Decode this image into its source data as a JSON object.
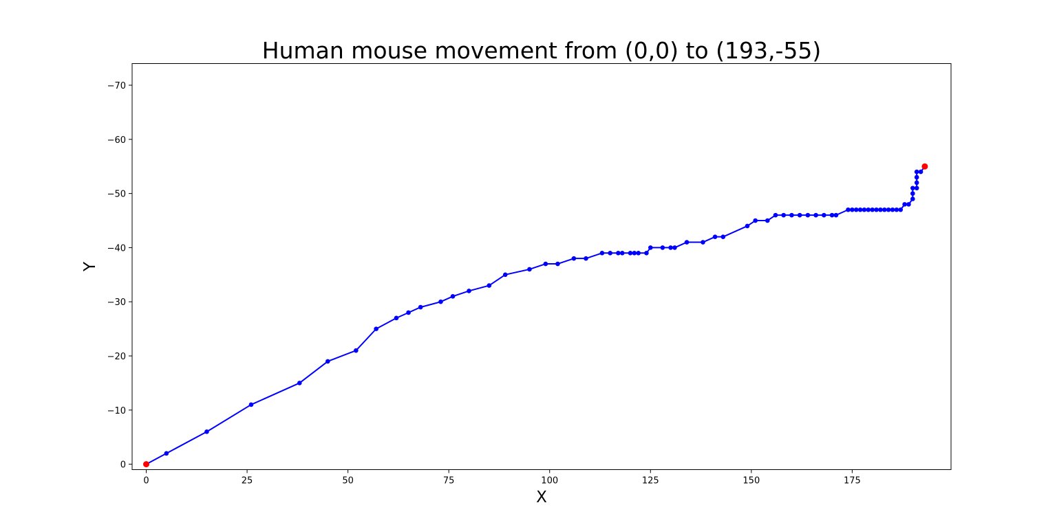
{
  "chart_data": {
    "type": "line",
    "title": "Human mouse movement from (0,0) to (193,-55)",
    "xlabel": "X",
    "ylabel": "Y",
    "xlim": [
      -3.5,
      199.5
    ],
    "ylim": [
      1,
      -74
    ],
    "y_inverted": true,
    "grid": false,
    "legend": "none",
    "x_ticks": [
      0,
      25,
      50,
      75,
      100,
      125,
      150,
      175
    ],
    "y_ticks": [
      0,
      -10,
      -20,
      -30,
      -40,
      -50,
      -60,
      -70
    ],
    "x_tick_labels": [
      "0",
      "25",
      "50",
      "75",
      "100",
      "125",
      "150",
      "175"
    ],
    "y_tick_labels": [
      "0",
      "−10",
      "−20",
      "−30",
      "−40",
      "−50",
      "−60",
      "−70"
    ],
    "series": [
      {
        "color": "#0000ff",
        "marker": "circle",
        "points": [
          [
            0,
            0
          ],
          [
            5,
            -2
          ],
          [
            15,
            -6
          ],
          [
            26,
            -11
          ],
          [
            38,
            -15
          ],
          [
            45,
            -19
          ],
          [
            52,
            -21
          ],
          [
            57,
            -25
          ],
          [
            62,
            -27
          ],
          [
            65,
            -28
          ],
          [
            68,
            -29
          ],
          [
            73,
            -30
          ],
          [
            76,
            -31
          ],
          [
            80,
            -32
          ],
          [
            85,
            -33
          ],
          [
            89,
            -35
          ],
          [
            95,
            -36
          ],
          [
            99,
            -37
          ],
          [
            102,
            -37
          ],
          [
            106,
            -38
          ],
          [
            109,
            -38
          ],
          [
            113,
            -39
          ],
          [
            115,
            -39
          ],
          [
            117,
            -39
          ],
          [
            118,
            -39
          ],
          [
            120,
            -39
          ],
          [
            121,
            -39
          ],
          [
            122,
            -39
          ],
          [
            124,
            -39
          ],
          [
            125,
            -40
          ],
          [
            128,
            -40
          ],
          [
            130,
            -40
          ],
          [
            131,
            -40
          ],
          [
            134,
            -41
          ],
          [
            138,
            -41
          ],
          [
            141,
            -42
          ],
          [
            143,
            -42
          ],
          [
            149,
            -44
          ],
          [
            151,
            -45
          ],
          [
            154,
            -45
          ],
          [
            156,
            -46
          ],
          [
            158,
            -46
          ],
          [
            160,
            -46
          ],
          [
            162,
            -46
          ],
          [
            164,
            -46
          ],
          [
            166,
            -46
          ],
          [
            168,
            -46
          ],
          [
            170,
            -46
          ],
          [
            171,
            -46
          ],
          [
            174,
            -47
          ],
          [
            175,
            -47
          ],
          [
            176,
            -47
          ],
          [
            177,
            -47
          ],
          [
            178,
            -47
          ],
          [
            179,
            -47
          ],
          [
            180,
            -47
          ],
          [
            181,
            -47
          ],
          [
            182,
            -47
          ],
          [
            183,
            -47
          ],
          [
            184,
            -47
          ],
          [
            185,
            -47
          ],
          [
            186,
            -47
          ],
          [
            187,
            -47
          ],
          [
            188,
            -48
          ],
          [
            189,
            -48
          ],
          [
            190,
            -49
          ],
          [
            190,
            -50
          ],
          [
            190,
            -51
          ],
          [
            191,
            -51
          ],
          [
            191,
            -52
          ],
          [
            191,
            -53
          ],
          [
            191,
            -54
          ],
          [
            192,
            -54
          ],
          [
            193,
            -55
          ]
        ]
      }
    ],
    "highlight_points": [
      {
        "label": "start",
        "x": 0,
        "y": 0,
        "color": "#ff0000"
      },
      {
        "label": "end",
        "x": 193,
        "y": -55,
        "color": "#ff0000"
      }
    ]
  }
}
